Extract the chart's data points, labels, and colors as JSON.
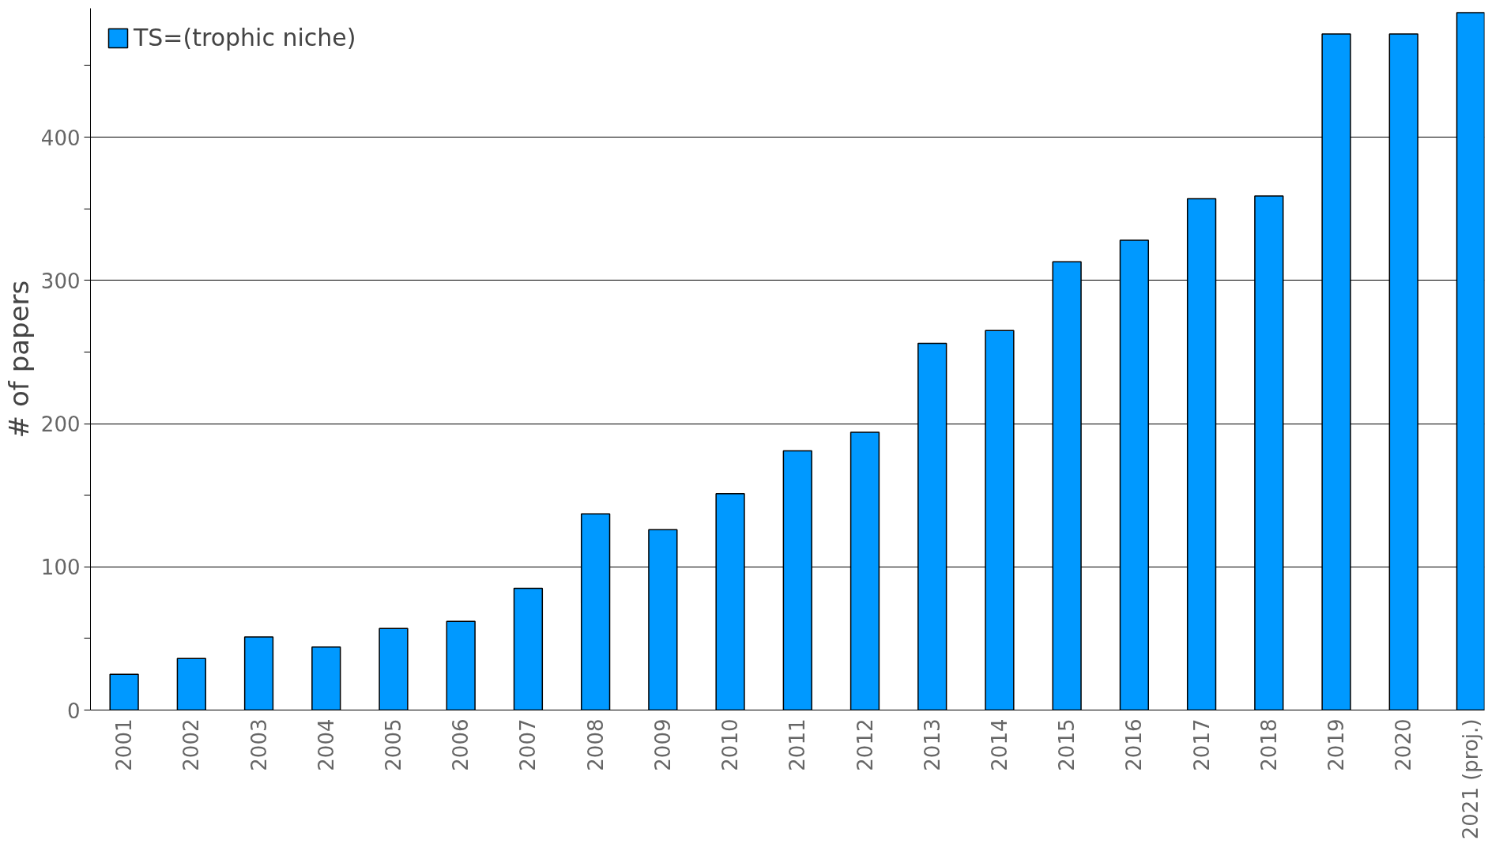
{
  "chart_data": {
    "type": "bar",
    "ylabel": "# of papers",
    "categories": [
      "2001",
      "2002",
      "2003",
      "2004",
      "2005",
      "2006",
      "2007",
      "2008",
      "2009",
      "2010",
      "2011",
      "2012",
      "2013",
      "2014",
      "2015",
      "2016",
      "2017",
      "2018",
      "2019",
      "2020",
      "2021 (proj.)"
    ],
    "series": [
      {
        "name": "TS=(trophic niche)",
        "color": "#0099ff",
        "values": [
          25,
          36,
          51,
          44,
          57,
          62,
          85,
          137,
          126,
          151,
          181,
          194,
          256,
          265,
          313,
          328,
          357,
          359,
          472,
          472,
          487
        ]
      }
    ],
    "ylim": [
      0,
      490
    ],
    "yticks": [
      0,
      {
        "value": 50,
        "label": null
      },
      100,
      {
        "value": 150,
        "label": null
      },
      200,
      {
        "value": 250,
        "label": null
      },
      300,
      {
        "value": 350,
        "label": null
      },
      400,
      {
        "value": 450,
        "label": null
      }
    ],
    "grid": "y",
    "legend": "top left"
  }
}
